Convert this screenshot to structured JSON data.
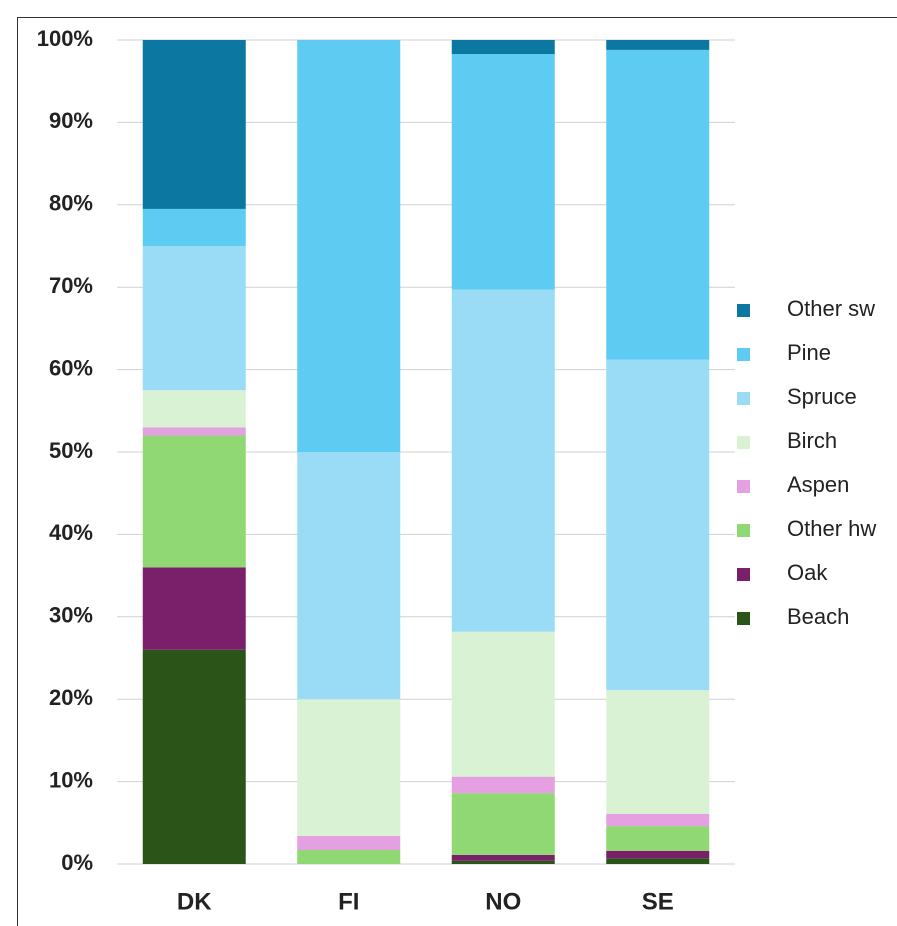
{
  "chart_data": {
    "type": "stacked_bar",
    "categories": [
      "DK",
      "FI",
      "NO",
      "SE"
    ],
    "series": [
      {
        "name": "Beach",
        "color": "#2a5418",
        "values": [
          26,
          0,
          0.4,
          0.7
        ]
      },
      {
        "name": "Oak",
        "color": "#7a1f6a",
        "values": [
          10,
          0,
          0.7,
          0.9
        ]
      },
      {
        "name": "Other hw",
        "color": "#8fd873",
        "values": [
          16,
          1.7,
          7.5,
          3
        ]
      },
      {
        "name": "Aspen",
        "color": "#e4a0e0",
        "values": [
          1,
          1.7,
          2,
          1.5
        ]
      },
      {
        "name": "Birch",
        "color": "#d9f2d3",
        "values": [
          4.5,
          16.6,
          17.6,
          15
        ]
      },
      {
        "name": "Spruce",
        "color": "#9adbf6",
        "values": [
          17.5,
          30,
          41.5,
          40.1
        ]
      },
      {
        "name": "Pine",
        "color": "#5ecbf3",
        "values": [
          4.5,
          50,
          28.6,
          37.6
        ]
      },
      {
        "name": "Other sw",
        "color": "#0c77a0",
        "values": [
          20.5,
          0,
          1.7,
          1.2
        ]
      }
    ],
    "ylim": [
      0,
      100
    ],
    "yticks": [
      {
        "value": 0,
        "label": "0%"
      },
      {
        "value": 10,
        "label": "10%"
      },
      {
        "value": 20,
        "label": "20%"
      },
      {
        "value": 30,
        "label": "30%"
      },
      {
        "value": 40,
        "label": "40%"
      },
      {
        "value": 50,
        "label": "50%"
      },
      {
        "value": 60,
        "label": "60%"
      },
      {
        "value": 70,
        "label": "70%"
      },
      {
        "value": 80,
        "label": "80%"
      },
      {
        "value": 90,
        "label": "90%"
      },
      {
        "value": 100,
        "label": "100%"
      }
    ],
    "grid": true,
    "legend": "right"
  }
}
